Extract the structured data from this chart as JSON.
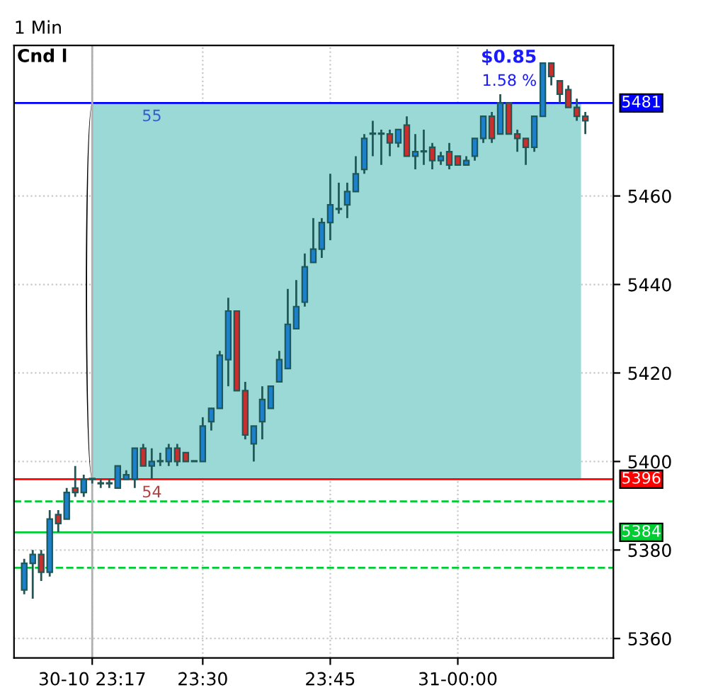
{
  "chart_data": {
    "type": "candlestick",
    "title": "1 Min",
    "x": [
      23.15,
      23.1667,
      23.1833,
      23.2,
      23.2167,
      23.2333,
      23.25,
      23.2667,
      23.2833,
      23.3,
      23.3167,
      23.3333,
      23.35,
      23.3667,
      23.3833,
      23.4,
      23.4167,
      23.4333,
      23.45,
      23.4667,
      23.4833,
      23.5,
      23.5167,
      23.5333,
      23.55,
      23.5667,
      23.5833,
      23.6,
      23.6167,
      23.6333,
      23.65,
      23.6667,
      23.6833,
      23.7,
      23.7167,
      23.7333,
      23.75,
      23.7667,
      23.7833,
      23.8,
      23.8167,
      23.8333,
      23.85,
      23.8667,
      23.8833,
      23.9,
      23.9167,
      23.9333,
      23.95,
      23.9667,
      23.9833,
      24.0,
      24.0167,
      24.0333,
      24.05,
      24.0667,
      24.0833,
      24.1,
      24.1167,
      24.1333,
      24.15,
      24.1667,
      24.1833,
      24.2,
      24.2167,
      24.2333,
      24.25
    ],
    "ohlc": [
      [
        5371,
        5378,
        5370,
        5377
      ],
      [
        5377,
        5380,
        5369,
        5379
      ],
      [
        5379,
        5380,
        5373,
        5375
      ],
      [
        5375,
        5389,
        5374,
        5387
      ],
      [
        5388,
        5389,
        5384,
        5386
      ],
      [
        5387,
        5394,
        5387,
        5393
      ],
      [
        5394,
        5399,
        5392,
        5393
      ],
      [
        5393,
        5397,
        5392,
        5396
      ],
      [
        5396,
        5396,
        5395,
        5396
      ],
      [
        5395,
        5396,
        5394,
        5395
      ],
      [
        5395,
        5396,
        5394,
        5395
      ],
      [
        5394,
        5399,
        5394,
        5399
      ],
      [
        5396,
        5398,
        5396,
        5397
      ],
      [
        5396,
        5403,
        5394,
        5403
      ],
      [
        5403,
        5404,
        5399,
        5399
      ],
      [
        5399,
        5403,
        5396,
        5400
      ],
      [
        5400,
        5402,
        5399,
        5400
      ],
      [
        5400,
        5404,
        5399,
        5403
      ],
      [
        5403,
        5404,
        5399,
        5400
      ],
      [
        5402,
        5402,
        5400,
        5400
      ],
      [
        5400,
        5400,
        5400,
        5400
      ],
      [
        5400,
        5410,
        5400,
        5408
      ],
      [
        5409,
        5412,
        5407,
        5412
      ],
      [
        5412,
        5425,
        5412,
        5424
      ],
      [
        5423,
        5437,
        5417,
        5434
      ],
      [
        5434,
        5434,
        5416,
        5416
      ],
      [
        5416,
        5418,
        5405,
        5406
      ],
      [
        5404,
        5408,
        5400,
        5408
      ],
      [
        5409,
        5417,
        5405,
        5414
      ],
      [
        5412,
        5417,
        5412,
        5417
      ],
      [
        5418,
        5425,
        5418,
        5423
      ],
      [
        5421,
        5439,
        5421,
        5431
      ],
      [
        5430,
        5441,
        5430,
        5435
      ],
      [
        5436,
        5447,
        5435,
        5444
      ],
      [
        5445,
        5455,
        5445,
        5448
      ],
      [
        5448,
        5455,
        5446,
        5454
      ],
      [
        5454,
        5465,
        5450,
        5458
      ],
      [
        5457,
        5463,
        5456,
        5457
      ],
      [
        5458,
        5463,
        5455,
        5461
      ],
      [
        5461,
        5469,
        5461,
        5465
      ],
      [
        5466,
        5474,
        5465,
        5473
      ],
      [
        5474,
        5477,
        5469,
        5474
      ],
      [
        5474,
        5475,
        5467,
        5474
      ],
      [
        5474,
        5475,
        5469,
        5472
      ],
      [
        5472,
        5475,
        5471,
        5475
      ],
      [
        5476,
        5478,
        5469,
        5469
      ],
      [
        5469,
        5474,
        5466,
        5470
      ],
      [
        5470,
        5475,
        5467,
        5470
      ],
      [
        5471,
        5472,
        5466,
        5468
      ],
      [
        5468,
        5470,
        5467,
        5469
      ],
      [
        5470,
        5472,
        5466,
        5467
      ],
      [
        5469,
        5469,
        5467,
        5467
      ],
      [
        5467,
        5469,
        5467,
        5468
      ],
      [
        5469,
        5473,
        5468,
        5473
      ],
      [
        5473,
        5478,
        5472,
        5478
      ],
      [
        5478,
        5479,
        5472,
        5473
      ],
      [
        5474,
        5483,
        5474,
        5481
      ],
      [
        5481,
        5481,
        5474,
        5474
      ],
      [
        5474,
        5475,
        5470,
        5473
      ],
      [
        5473,
        5473,
        5467,
        5471
      ],
      [
        5471,
        5478,
        5470,
        5478
      ],
      [
        5478,
        5490,
        5478,
        5490
      ],
      [
        5490,
        5490,
        5485,
        5487
      ],
      [
        5486,
        5486,
        5481,
        5483
      ],
      [
        5484,
        5485,
        5480,
        5480
      ],
      [
        5480,
        5482,
        5477,
        5478
      ],
      [
        5478,
        5479,
        5474,
        5477
      ]
    ],
    "colors": [
      "#1e80c8",
      "#1e80c8",
      "#c83030",
      "#1e80c8",
      "#c83030",
      "#1e80c8",
      "#c83030",
      "#1e80c8",
      "#1e80c8",
      "#1e80c8",
      "#1e80c8",
      "#1e80c8",
      "#1e80c8",
      "#1e80c8",
      "#c83030",
      "#1e80c8",
      "#1e80c8",
      "#1e80c8",
      "#c83030",
      "#c83030",
      "#1e80c8",
      "#1e80c8",
      "#1e80c8",
      "#1e80c8",
      "#1e80c8",
      "#c83030",
      "#c83030",
      "#1e80c8",
      "#1e80c8",
      "#1e80c8",
      "#1e80c8",
      "#1e80c8",
      "#1e80c8",
      "#1e80c8",
      "#1e80c8",
      "#1e80c8",
      "#1e80c8",
      "#1e80c8",
      "#1e80c8",
      "#1e80c8",
      "#1e80c8",
      "#1e80c8",
      "#1e80c8",
      "#c83030",
      "#1e80c8",
      "#c83030",
      "#1e80c8",
      "#1e80c8",
      "#c83030",
      "#1e80c8",
      "#c83030",
      "#c83030",
      "#1e80c8",
      "#1e80c8",
      "#1e80c8",
      "#c83030",
      "#1e80c8",
      "#c83030",
      "#c83030",
      "#c83030",
      "#1e80c8",
      "#1e80c8",
      "#c83030",
      "#c83030",
      "#c83030",
      "#c83030",
      "#c83030"
    ],
    "xlim": [
      23.13,
      24.305
    ],
    "xticks": [
      {
        "value": 23.2833,
        "label": "30-10 23:17"
      },
      {
        "value": 23.5,
        "label": "23:30"
      },
      {
        "value": 23.75,
        "label": "23:45"
      },
      {
        "value": 24.0,
        "label": "31-00:00"
      }
    ],
    "ylim": [
      5355.6,
      5494
    ],
    "yticks": [
      5360,
      5380,
      5400,
      5420,
      5440,
      5460
    ],
    "grid": true,
    "ref_lines": [
      {
        "axis": "y",
        "value": 5481,
        "label": "5481",
        "color": "#0000ff",
        "line_style": "solid"
      },
      {
        "axis": "y",
        "value": 5396,
        "label": "5396",
        "color": "#ff0000",
        "line_style": "solid"
      },
      {
        "axis": "y",
        "value": 5384,
        "label": "5384",
        "color": "#00cc33",
        "line_style": "solid"
      },
      {
        "axis": "y",
        "value": 5391,
        "label": null,
        "color": "#00cc33",
        "line_style": "dashed"
      },
      {
        "axis": "y",
        "value": 5376,
        "label": null,
        "color": "#00cc33",
        "line_style": "dashed"
      },
      {
        "axis": "x",
        "value": 23.2833,
        "label": null,
        "color": "#b0b0b0",
        "line_style": "solid"
      }
    ],
    "bands": [
      {
        "axis": "y",
        "from": 5396,
        "to": 5481,
        "label": null,
        "color": "#9bd9d6"
      }
    ],
    "annotations": [
      "Cnd l",
      "55",
      "54",
      "$0.85",
      "1.58 %"
    ]
  }
}
